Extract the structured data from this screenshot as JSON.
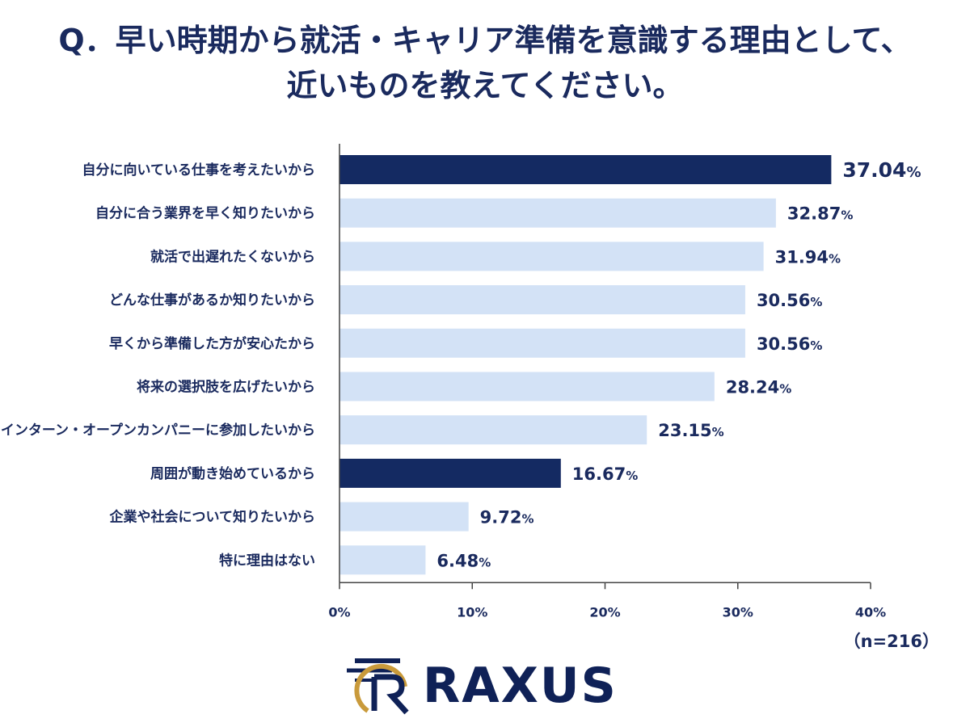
{
  "title": {
    "line1": "Q．早い時期から就活・キャリア準備を意識する理由として、",
    "line2": "近いものを教えてください。"
  },
  "note": "（n=216）",
  "logo": {
    "text": "RAXUS",
    "icon": "raxus-r-logo-icon"
  },
  "colors": {
    "highlight": "#142a62",
    "bar": "#d3e2f6",
    "text": "#1a2a5e",
    "axis": "#444444"
  },
  "chart_data": {
    "type": "bar",
    "orientation": "horizontal",
    "categories": [
      "自分に向いている仕事を考えたいから",
      "自分に合う業界を早く知りたいから",
      "就活で出遅れたくないから",
      "どんな仕事があるか知りたいから",
      "早くから準備した方が安心たから",
      "将来の選択肢を広げたいから",
      "インターン・オープンカンパニーに参加したいから",
      "周囲が動き始めているから",
      "企業や社会について知りたいから",
      "特に理由はない"
    ],
    "values": [
      37.04,
      32.87,
      31.94,
      30.56,
      30.56,
      28.24,
      23.15,
      16.67,
      9.72,
      6.48
    ],
    "value_labels": [
      "37.04",
      "32.87",
      "31.94",
      "30.56",
      "30.56",
      "28.24",
      "23.15",
      "16.67",
      "9.72",
      "6.48"
    ],
    "value_unit": "%",
    "highlighted": [
      0,
      7
    ],
    "xlim": [
      0,
      40
    ],
    "xticks": [
      "0%",
      "10%",
      "20%",
      "30%",
      "40%"
    ],
    "grid": false,
    "legend": "none"
  }
}
